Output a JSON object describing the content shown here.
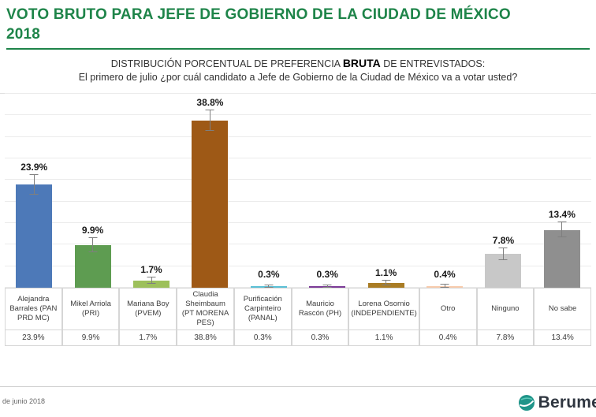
{
  "page": {
    "title_line1": "VOTO BRUTO PARA JEFE DE GOBIERNO DE LA CIUDAD DE MÉXICO",
    "title_line2": "2018",
    "subtitle_prefix": "DISTRIBUCIÓN PORCENTUAL DE PREFERENCIA ",
    "subtitle_bold": "BRUTA",
    "subtitle_suffix": " DE ENTREVISTADOS:",
    "question": "El primero de julio ¿por cuál candidato a Jefe de Gobierno de la Ciudad de México va a votar usted?",
    "footer_left": "de junio 2018",
    "brand": "Berume"
  },
  "colors": {
    "title_green": "#1e8449",
    "error_bar": "#7f7f7f",
    "logo_teal": "#1f9489"
  },
  "chart_data": {
    "type": "bar",
    "title": "DISTRIBUCIÓN PORCENTUAL DE PREFERENCIA BRUTA DE ENTREVISTADOS",
    "xlabel": "",
    "ylabel": "",
    "ylim": [
      0,
      45
    ],
    "grid": true,
    "grid_step": 5,
    "legend": "none",
    "categories": [
      "Alejandra Barrales (PAN PRD MC)",
      "Mikel Arriola (PRI)",
      "Mariana Boy (PVEM)",
      "Claudia Sheimbaum (PT MORENA PES)",
      "Purificación Carpinteiro (PANAL)",
      "Mauricio Rascón (PH)",
      "Lorena Osornio (INDEPENDIENTE)",
      "Otro",
      "Ninguno",
      "No sabe"
    ],
    "values": [
      23.9,
      9.9,
      1.7,
      38.8,
      0.3,
      0.3,
      1.1,
      0.4,
      7.8,
      13.4
    ],
    "value_labels": [
      "23.9%",
      "9.9%",
      "1.7%",
      "38.8%",
      "0.3%",
      "0.3%",
      "1.1%",
      "0.4%",
      "7.8%",
      "13.4%"
    ],
    "table_values": [
      "23.9%",
      "9.9%",
      "1.7%",
      "38.8%",
      "0.3%",
      "0.3%",
      "1.1%",
      "0.4%",
      "7.8%",
      "13.4%"
    ],
    "errors": [
      2.3,
      1.6,
      0.7,
      2.4,
      0.3,
      0.3,
      0.6,
      0.35,
      1.4,
      1.7
    ],
    "bar_colors": [
      "#4d79b8",
      "#5e9c51",
      "#9dc05b",
      "#9e5916",
      "#5bc0d6",
      "#7d3c98",
      "#a97c24",
      "#f8cbad",
      "#c8c8c8",
      "#8f8f8f"
    ]
  }
}
